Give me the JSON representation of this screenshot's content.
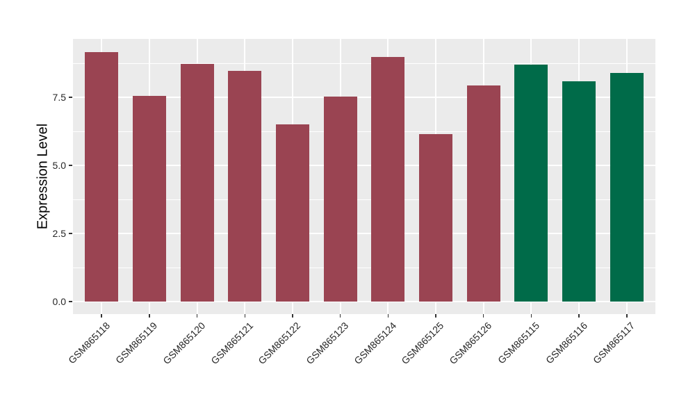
{
  "chart_data": {
    "type": "bar",
    "title": "",
    "xlabel": "",
    "ylabel": "Expression Level",
    "categories": [
      "GSM865118",
      "GSM865119",
      "GSM865120",
      "GSM865121",
      "GSM865122",
      "GSM865123",
      "GSM865124",
      "GSM865125",
      "GSM865126",
      "GSM865115",
      "GSM865116",
      "GSM865117"
    ],
    "values": [
      9.17,
      7.55,
      8.72,
      8.47,
      6.5,
      7.53,
      8.98,
      6.15,
      7.93,
      8.7,
      8.09,
      8.39
    ],
    "bar_colors": [
      "#9A4452",
      "#9A4452",
      "#9A4452",
      "#9A4452",
      "#9A4452",
      "#9A4452",
      "#9A4452",
      "#9A4452",
      "#9A4452",
      "#006B49",
      "#006B49",
      "#006B49"
    ],
    "y_ticks": [
      0,
      2.5,
      5,
      7.5
    ],
    "y_tick_labels": [
      "0.0",
      "2.5",
      "5.0",
      "7.5"
    ],
    "y_minor_ticks": [
      1.25,
      3.75,
      6.25,
      8.75
    ],
    "ylim": [
      -0.46,
      9.63
    ],
    "bar_width_fraction": 0.7,
    "x_label_angle": 45,
    "grid": true,
    "legend_position": "none",
    "panel_background": "#EBEBEB",
    "grid_color": "#FFFFFF",
    "axis_text_color": "#262626",
    "axis_title_color": "#000000"
  }
}
